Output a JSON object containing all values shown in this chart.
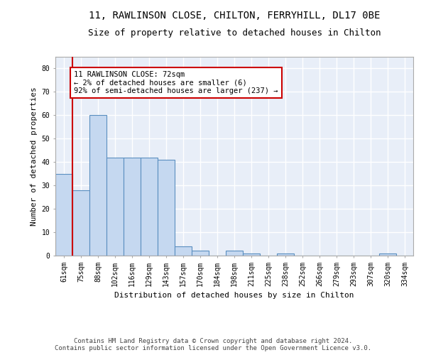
{
  "title": "11, RAWLINSON CLOSE, CHILTON, FERRYHILL, DL17 0BE",
  "subtitle": "Size of property relative to detached houses in Chilton",
  "xlabel": "Distribution of detached houses by size in Chilton",
  "ylabel": "Number of detached properties",
  "categories": [
    "61sqm",
    "75sqm",
    "88sqm",
    "102sqm",
    "116sqm",
    "129sqm",
    "143sqm",
    "157sqm",
    "170sqm",
    "184sqm",
    "198sqm",
    "211sqm",
    "225sqm",
    "238sqm",
    "252sqm",
    "266sqm",
    "279sqm",
    "293sqm",
    "307sqm",
    "320sqm",
    "334sqm"
  ],
  "values": [
    35,
    28,
    60,
    42,
    42,
    42,
    41,
    4,
    2,
    0,
    2,
    1,
    0,
    1,
    0,
    0,
    0,
    0,
    0,
    1,
    0
  ],
  "bar_color": "#c5d8f0",
  "bar_edge_color": "#5a8fc0",
  "annotation_text": "11 RAWLINSON CLOSE: 72sqm\n← 2% of detached houses are smaller (6)\n92% of semi-detached houses are larger (237) →",
  "annotation_box_color": "#ffffff",
  "annotation_box_edge_color": "#cc0000",
  "vline_color": "#cc0000",
  "ylim": [
    0,
    85
  ],
  "yticks": [
    0,
    10,
    20,
    30,
    40,
    50,
    60,
    70,
    80
  ],
  "footer_text": "Contains HM Land Registry data © Crown copyright and database right 2024.\nContains public sector information licensed under the Open Government Licence v3.0.",
  "background_color": "#e8eef8",
  "grid_color": "#ffffff",
  "title_fontsize": 10,
  "subtitle_fontsize": 9,
  "axis_label_fontsize": 8,
  "tick_fontsize": 7,
  "annotation_fontsize": 7.5,
  "footer_fontsize": 6.5
}
